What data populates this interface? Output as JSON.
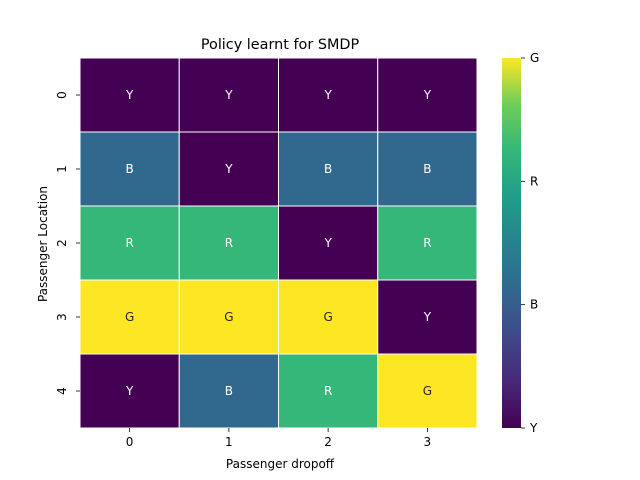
{
  "chart_data": {
    "type": "heatmap",
    "title": "Policy learnt for SMDP",
    "xlabel": "Passenger dropoff",
    "ylabel": "Passenger Location",
    "x_categories": [
      "0",
      "1",
      "2",
      "3"
    ],
    "y_categories": [
      "0",
      "1",
      "2",
      "3",
      "4"
    ],
    "cells": [
      [
        "Y",
        "Y",
        "Y",
        "Y"
      ],
      [
        "B",
        "Y",
        "B",
        "B"
      ],
      [
        "R",
        "R",
        "Y",
        "R"
      ],
      [
        "G",
        "G",
        "G",
        "Y"
      ],
      [
        "Y",
        "B",
        "R",
        "G"
      ]
    ],
    "colorbar": {
      "labels": [
        "Y",
        "B",
        "R",
        "G"
      ],
      "colormap": "viridis"
    },
    "cell_colors": {
      "Y": "#440154",
      "B": "#31688e",
      "R": "#35b779",
      "G": "#fde725"
    },
    "label_colors": {
      "Y": "#ffffff",
      "B": "#ffffff",
      "R": "#ffffff",
      "G": "#262626"
    },
    "grid_line_color": "#ffffff"
  }
}
